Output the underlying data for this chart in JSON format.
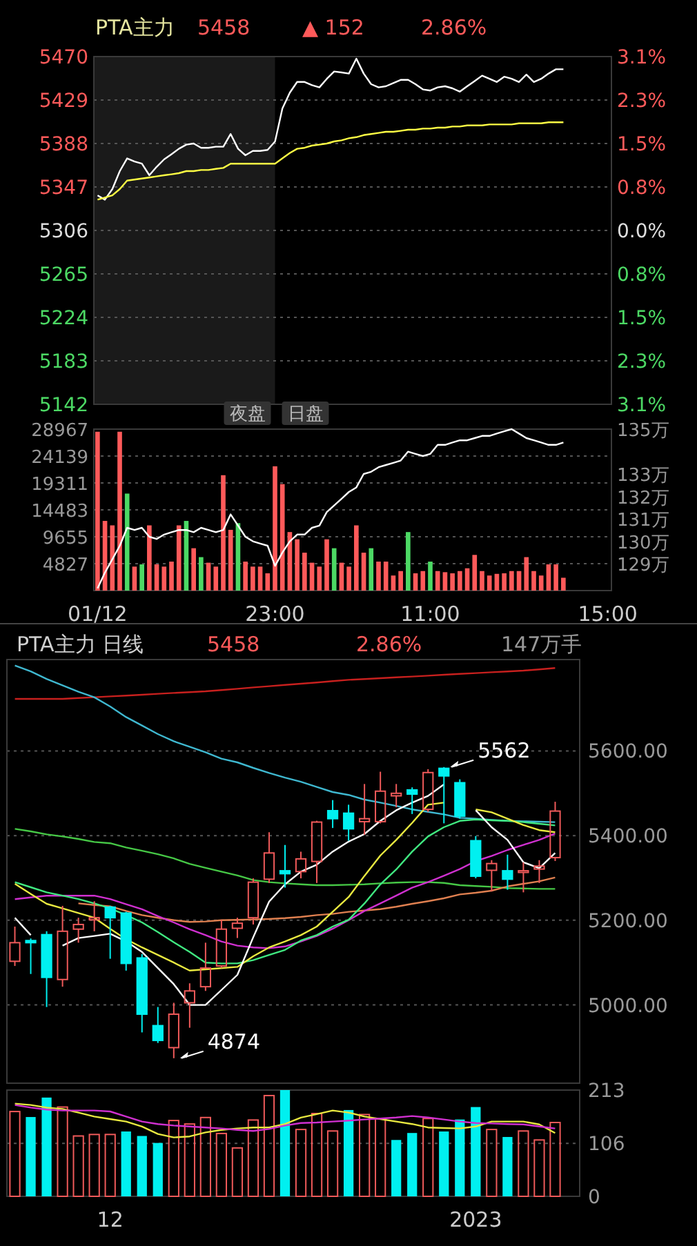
{
  "chart_data": [
    {
      "type": "line",
      "title": "PTA主力",
      "annotations": [
        "5458",
        "▲ 152",
        "2.86%",
        "夜盘",
        "日盘"
      ],
      "tick_labels": "y",
      "grid": "y",
      "categories": [
        null,
        null,
        null,
        null,
        null,
        null,
        null,
        null,
        null,
        null,
        null,
        null,
        null,
        null,
        null,
        null,
        null,
        null,
        null,
        null,
        null,
        null,
        null,
        null,
        null,
        null,
        null,
        null,
        null,
        null,
        null,
        null,
        null,
        null,
        null,
        null,
        null,
        null,
        null,
        null,
        null,
        null,
        null,
        null,
        null,
        null,
        null,
        null,
        null,
        null,
        null,
        null,
        null,
        null,
        null,
        null,
        null,
        null,
        null,
        null,
        null,
        null,
        null,
        null,
        null,
        null,
        null,
        null,
        null,
        null
      ],
      "ylim": [
        5142,
        5470
      ],
      "yticks": [
        5142,
        5183,
        5224,
        5265,
        5306,
        5347,
        5388,
        5429,
        5470
      ],
      "y2lim": [
        -3.09,
        3.09
      ],
      "y2ticks": [
        {
          "value": 3.09,
          "label": "3.1%"
        },
        {
          "value": 2.32,
          "label": "2.3%"
        },
        {
          "value": 1.55,
          "label": "1.5%"
        },
        {
          "value": 0.77,
          "label": "0.8%"
        },
        {
          "value": 0,
          "label": "0.0%"
        },
        {
          "value": -0.77,
          "label": "0.8%"
        },
        {
          "value": -1.55,
          "label": "1.5%"
        },
        {
          "value": -2.32,
          "label": "2.3%"
        },
        {
          "value": -3.09,
          "label": "3.1%"
        }
      ],
      "series": [
        {
          "type": "line",
          "color": "#ffffff",
          "values": [
            5339,
            5335,
            5345,
            5362,
            5374,
            5371,
            5369,
            5358,
            5366,
            5373,
            5378,
            5383,
            5387,
            5388,
            5384,
            5384,
            5385,
            5385,
            5397,
            5383,
            5377,
            5381,
            5381,
            5382,
            5390,
            5421,
            5436,
            5446,
            5446,
            5443,
            5441,
            5449,
            5456,
            5455,
            5454,
            5468,
            5454,
            5444,
            5441,
            5442,
            5445,
            5448,
            5448,
            5444,
            5439,
            5438,
            5441,
            5442,
            5440,
            5437,
            5442,
            5447,
            5452,
            5449,
            5446,
            5451,
            5449,
            5446,
            5453,
            5446,
            5449,
            5454,
            5458,
            5458,
            null,
            null,
            null,
            null,
            null,
            null
          ]
        },
        {
          "type": "line",
          "color": "#ffff44",
          "values": [
            5335,
            5337,
            5339,
            5345,
            5353,
            5354,
            5355,
            5356,
            5357,
            5358,
            5359,
            5360,
            5362,
            5362,
            5363,
            5363,
            5364,
            5365,
            5369,
            5369,
            5369,
            5369,
            5369,
            5369,
            5369,
            5374,
            5379,
            5383,
            5384,
            5386,
            5387,
            5388,
            5390,
            5391,
            5393,
            5394,
            5396,
            5397,
            5398,
            5399,
            5399,
            5400,
            5401,
            5401,
            5402,
            5402,
            5403,
            5403,
            5404,
            5404,
            5405,
            5405,
            5405,
            5406,
            5406,
            5406,
            5406,
            5407,
            5407,
            5407,
            5407,
            5408,
            5408,
            5408,
            null,
            null,
            null,
            null,
            null,
            null
          ]
        }
      ]
    },
    {
      "type": "bar",
      "grid": "y",
      "categories": [
        "01/12",
        null,
        null,
        null,
        null,
        null,
        null,
        null,
        null,
        null,
        null,
        null,
        null,
        null,
        null,
        null,
        null,
        null,
        null,
        null,
        null,
        null,
        null,
        null,
        "23:00",
        null,
        null,
        null,
        null,
        null,
        null,
        null,
        null,
        null,
        null,
        null,
        null,
        null,
        null,
        null,
        null,
        null,
        null,
        null,
        null,
        "11:00",
        null,
        null,
        null,
        null,
        null,
        null,
        null,
        null,
        null,
        null,
        null,
        null,
        null,
        null,
        null,
        null,
        null,
        null,
        null,
        null,
        null,
        null,
        null,
        "15:00"
      ],
      "ylim": [
        0,
        28967
      ],
      "yticks": [
        4827,
        9655,
        14483,
        19311,
        24139,
        28967
      ],
      "y2lim": [
        127.8,
        135
      ],
      "y2ticks": [
        {
          "value": 129,
          "label": "129万"
        },
        {
          "value": 130,
          "label": "130万"
        },
        {
          "value": 131,
          "label": "131万"
        },
        {
          "value": 132,
          "label": "132万"
        },
        {
          "value": 133,
          "label": "133万"
        },
        {
          "value": 135,
          "label": "135万"
        }
      ],
      "series": [
        {
          "type": "bar",
          "values": [
            28500,
            12500,
            11700,
            28500,
            17400,
            4300,
            4700,
            11700,
            4700,
            4300,
            5200,
            11700,
            12500,
            7600,
            6000,
            5000,
            4300,
            20700,
            10900,
            12100,
            5200,
            4300,
            4300,
            3100,
            22300,
            19100,
            10500,
            9200,
            6800,
            5000,
            4300,
            9200,
            7600,
            5000,
            4300,
            11700,
            6800,
            7600,
            5200,
            5200,
            2700,
            3500,
            10500,
            3100,
            3500,
            5200,
            3500,
            3300,
            3100,
            3500,
            4000,
            6400,
            3500,
            2700,
            3000,
            3100,
            3500,
            3500,
            6000,
            3500,
            2700,
            4700,
            4700,
            2300,
            null,
            null,
            null,
            null,
            null,
            null
          ],
          "colors": [
            "#ff5a5a",
            "#ff5a5a",
            "#ff5a5a",
            "#ff5a5a",
            "#4cd964",
            "#ff5a5a",
            "#4cd964",
            "#ff5a5a",
            "#ff5a5a",
            "#ff5a5a",
            "#ff5a5a",
            "#ff5a5a",
            "#4cd964",
            "#ff5a5a",
            "#4cd964",
            "#ff5a5a",
            "#ff5a5a",
            "#ff5a5a",
            "#ff5a5a",
            "#4cd964",
            "#ff5a5a",
            "#ff5a5a",
            "#ff5a5a",
            "#ff5a5a",
            "#ff5a5a",
            "#ff5a5a",
            "#ff5a5a",
            "#ff5a5a",
            "#ff5a5a",
            "#ff5a5a",
            "#ff5a5a",
            "#ff5a5a",
            "#4cd964",
            "#ff5a5a",
            "#ff5a5a",
            "#ff5a5a",
            "#ff5a5a",
            "#4cd964",
            "#ff5a5a",
            "#ff5a5a",
            "#ff5a5a",
            "#ff5a5a",
            "#4cd964",
            "#ff5a5a",
            "#ff5a5a",
            "#4cd964",
            "#ff5a5a",
            "#ff5a5a",
            "#ff5a5a",
            "#ff5a5a",
            "#ff5a5a",
            "#ff5a5a",
            "#ff5a5a",
            "#ff5a5a",
            "#ff5a5a",
            "#ff5a5a",
            "#ff5a5a",
            "#ff5a5a",
            "#ff5a5a",
            "#ff5a5a",
            "#ff5a5a",
            "#ff5a5a",
            "#ff5a5a",
            "#ff5a5a",
            "#ff5a5a",
            "#ff5a5a",
            "#ff5a5a",
            "#ff5a5a",
            "#ff5a5a",
            "#ff5a5a"
          ]
        },
        {
          "type": "line",
          "axis": "y2",
          "color": "#ffffff",
          "values": [
            127.9,
            128.6,
            129.2,
            129.8,
            130.6,
            130.5,
            130.6,
            130.2,
            130.1,
            130.3,
            130.4,
            130.5,
            130.5,
            130.4,
            130.6,
            130.5,
            130.4,
            130.5,
            131.2,
            130.7,
            130.2,
            130.0,
            129.9,
            129.8,
            128.9,
            129.5,
            130.0,
            130.3,
            130.3,
            130.6,
            130.7,
            131.3,
            131.6,
            131.9,
            132.2,
            132.4,
            133.0,
            133.1,
            133.3,
            133.4,
            133.5,
            133.6,
            134.0,
            133.9,
            133.8,
            133.9,
            134.3,
            134.3,
            134.4,
            134.5,
            134.5,
            134.6,
            134.7,
            134.7,
            134.8,
            134.9,
            135.0,
            134.8,
            134.6,
            134.5,
            134.4,
            134.3,
            134.3,
            134.4,
            null,
            null,
            null,
            null,
            null,
            null
          ]
        }
      ]
    },
    {
      "type": "candlestick",
      "title": "PTA主力 日线",
      "annotations": [
        "5458",
        "2.86%",
        "147万手",
        "5562",
        "4874"
      ],
      "tick_labels": "y",
      "grid": "y",
      "categories": [
        null,
        null,
        null,
        null,
        null,
        null,
        null,
        null,
        null,
        null,
        null,
        null,
        null,
        null,
        null,
        null,
        null,
        null,
        null,
        null,
        null,
        null,
        null,
        null,
        null,
        null,
        null,
        null,
        null,
        null,
        null,
        null,
        null,
        null,
        null
      ],
      "ylim": [
        4815,
        5816
      ],
      "yticks": [
        {
          "value": 5000,
          "label": "5000.00"
        },
        {
          "value": 5200,
          "label": "5200.00"
        },
        {
          "value": 5400,
          "label": "5400.00"
        },
        {
          "value": 5600,
          "label": "5600.00"
        }
      ],
      "ohlc": [
        [
          5103,
          5185,
          5092,
          5147
        ],
        [
          5152,
          5157,
          5073,
          5147
        ],
        [
          5166,
          5174,
          4995,
          5065
        ],
        [
          5060,
          5234,
          5043,
          5174
        ],
        [
          5179,
          5206,
          5147,
          5190
        ],
        [
          5201,
          5245,
          5174,
          5206
        ],
        [
          5231,
          5234,
          5109,
          5206
        ],
        [
          5217,
          5220,
          5081,
          5098
        ],
        [
          5111,
          5120,
          4935,
          4978
        ],
        [
          4951,
          4995,
          4910,
          4916
        ],
        [
          4899,
          5005,
          4874,
          4978
        ],
        [
          5005,
          5051,
          4946,
          5033
        ],
        [
          5043,
          5147,
          5033,
          5087
        ],
        [
          5092,
          5201,
          5087,
          5179
        ],
        [
          5181,
          5206,
          5158,
          5193
        ],
        [
          5206,
          5299,
          5190,
          5290
        ],
        [
          5297,
          5408,
          5288,
          5359
        ],
        [
          5317,
          5378,
          5277,
          5310
        ],
        [
          5315,
          5362,
          5299,
          5345
        ],
        [
          5339,
          5435,
          5288,
          5432
        ],
        [
          5459,
          5484,
          5418,
          5440
        ],
        [
          5453,
          5473,
          5388,
          5416
        ],
        [
          5433,
          5522,
          5402,
          5440
        ],
        [
          5433,
          5551,
          5429,
          5505
        ],
        [
          5494,
          5522,
          5467,
          5500
        ],
        [
          5508,
          5514,
          5451,
          5498
        ],
        [
          5462,
          5557,
          5456,
          5549
        ],
        [
          5559,
          5562,
          5429,
          5541
        ],
        [
          5525,
          5533,
          5440,
          5446
        ],
        [
          5388,
          5399,
          5299,
          5304
        ],
        [
          5318,
          5342,
          5268,
          5334
        ],
        [
          5317,
          5355,
          5272,
          5297
        ],
        [
          5313,
          5337,
          5266,
          5317
        ],
        [
          5321,
          5342,
          5288,
          5328
        ],
        [
          5348,
          5480,
          5340,
          5458
        ]
      ],
      "colors": [
        "#f05a5a",
        "#00f0f0",
        "#00f0f0",
        "#f05a5a",
        "#f05a5a",
        "#f05a5a",
        "#00f0f0",
        "#00f0f0",
        "#00f0f0",
        "#00f0f0",
        "#f05a5a",
        "#f05a5a",
        "#f05a5a",
        "#f05a5a",
        "#f05a5a",
        "#f05a5a",
        "#f05a5a",
        "#00f0f0",
        "#f05a5a",
        "#f05a5a",
        "#00f0f0",
        "#00f0f0",
        "#f05a5a",
        "#f05a5a",
        "#f05a5a",
        "#00f0f0",
        "#f05a5a",
        "#00f0f0",
        "#00f0f0",
        "#00f0f0",
        "#f05a5a",
        "#00f0f0",
        "#f05a5a",
        "#f05a5a",
        "#f05a5a"
      ],
      "series": [
        {
          "type": "line",
          "color": "#c8201e",
          "values": [
            5723,
            5723,
            5723,
            5723,
            5725,
            5727,
            5729,
            5731,
            5733,
            5735,
            5737,
            5739,
            5741,
            5744,
            5747,
            5750,
            5753,
            5756,
            5759,
            5762,
            5765,
            5768,
            5770,
            5772,
            5774,
            5776,
            5778,
            5780,
            5782,
            5784,
            5786,
            5788,
            5790,
            5793,
            5796
          ]
        },
        {
          "type": "line",
          "color": "#3fb8d0",
          "values": [
            5802,
            5788,
            5770,
            5755,
            5740,
            5727,
            5705,
            5680,
            5660,
            5640,
            5623,
            5610,
            5597,
            5582,
            5573,
            5560,
            5548,
            5537,
            5527,
            5515,
            5503,
            5496,
            5485,
            5478,
            5470,
            5462,
            5456,
            5450,
            5442,
            5440,
            5437,
            5435,
            5434,
            5433,
            5432
          ]
        },
        {
          "type": "line",
          "color": "#46c846",
          "values": [
            5416,
            5410,
            5403,
            5398,
            5392,
            5385,
            5382,
            5372,
            5364,
            5356,
            5346,
            5333,
            5324,
            5315,
            5306,
            5295,
            5290,
            5287,
            5285,
            5283,
            5283,
            5284,
            5285,
            5287,
            5289,
            5290,
            5290,
            5288,
            5283,
            5281,
            5279,
            5276,
            5275,
            5274,
            5274
          ]
        },
        {
          "type": "line",
          "color": "#e08050",
          "values": [
            null,
            null,
            null,
            null,
            5240,
            5236,
            5233,
            5222,
            5212,
            5206,
            5200,
            5196,
            5197,
            5200,
            5201,
            5202,
            5203,
            5205,
            5208,
            5212,
            5215,
            5220,
            5223,
            5226,
            5232,
            5239,
            5245,
            5252,
            5261,
            5265,
            5270,
            5280,
            5286,
            5292,
            5301
          ]
        },
        {
          "type": "line",
          "color": "#d030d0",
          "values": [
            5250,
            5254,
            5258,
            5258,
            5258,
            5258,
            5250,
            5238,
            5226,
            5210,
            5195,
            5179,
            5165,
            5150,
            5140,
            5136,
            5134,
            5138,
            5150,
            5163,
            5180,
            5200,
            5222,
            5240,
            5258,
            5277,
            5290,
            5305,
            5321,
            5340,
            5352,
            5366,
            5378,
            5390,
            5405
          ]
        },
        {
          "type": "line",
          "color": "#40e880",
          "values": [
            5290,
            5278,
            5266,
            5258,
            5250,
            5240,
            5228,
            5212,
            5195,
            5172,
            5148,
            5125,
            5100,
            5098,
            5098,
            5106,
            5118,
            5130,
            5152,
            5165,
            5185,
            5201,
            5240,
            5285,
            5320,
            5362,
            5398,
            5420,
            5435,
            5438,
            5436,
            5435,
            5432,
            5428,
            5424
          ]
        },
        {
          "type": "line",
          "color": "#e8e840",
          "values": [
            5286,
            5262,
            5239,
            5228,
            5217,
            5206,
            5180,
            5155,
            5136,
            5118,
            5100,
            5081,
            5084,
            5087,
            5090,
            5115,
            5136,
            5150,
            5165,
            5185,
            5220,
            5255,
            5305,
            5353,
            5390,
            5430,
            5473,
            5478,
            null,
            5462,
            5455,
            5440,
            5425,
            5413,
            5408
          ]
        },
        {
          "type": "line",
          "color": "#ffffff",
          "values": [
            5206,
            5165,
            null,
            5140,
            5158,
            5163,
            5168,
            5150,
            5125,
            5087,
            5049,
            5000,
            5000,
            5035,
            5071,
            5160,
            5244,
            5285,
            5315,
            5331,
            5362,
            5386,
            5404,
            5435,
            5460,
            5478,
            5494,
            5521,
            null,
            5460,
            5420,
            5390,
            5337,
            5323,
            5359
          ]
        }
      ]
    },
    {
      "type": "bar",
      "grid": "y",
      "categories": [
        null,
        null,
        null,
        null,
        null,
        null,
        "12",
        null,
        null,
        null,
        null,
        null,
        null,
        null,
        null,
        null,
        null,
        null,
        null,
        null,
        null,
        null,
        null,
        null,
        null,
        null,
        null,
        null,
        null,
        "2023",
        null,
        null,
        null,
        null,
        null
      ],
      "ylim": [
        0,
        213
      ],
      "yticks": [
        0,
        106,
        213
      ],
      "series": [
        {
          "type": "bar",
          "values": [
            170,
            159,
            198,
            179,
            121,
            124,
            124,
            130,
            121,
            107,
            152,
            145,
            158,
            126,
            97,
            153,
            202,
            213,
            134,
            166,
            131,
            173,
            164,
            155,
            113,
            127,
            156,
            130,
            154,
            179,
            134,
            119,
            131,
            113,
            148
          ],
          "colors": [
            "#f05a5a",
            "#00f0f0",
            "#00f0f0",
            "#f05a5a",
            "#f05a5a",
            "#f05a5a",
            "#f05a5a",
            "#00f0f0",
            "#00f0f0",
            "#00f0f0",
            "#f05a5a",
            "#f05a5a",
            "#f05a5a",
            "#f05a5a",
            "#f05a5a",
            "#f05a5a",
            "#f05a5a",
            "#00f0f0",
            "#f05a5a",
            "#f05a5a",
            "#f05a5a",
            "#00f0f0",
            "#f05a5a",
            "#f05a5a",
            "#00f0f0",
            "#00f0f0",
            "#f05a5a",
            "#00f0f0",
            "#00f0f0",
            "#00f0f0",
            "#f05a5a",
            "#00f0f0",
            "#f05a5a",
            "#f05a5a",
            "#f05a5a"
          ]
        },
        {
          "type": "line",
          "color": "#e8e840",
          "values": [
            186,
            183,
            178,
            175,
            168,
            160,
            155,
            150,
            140,
            125,
            118,
            120,
            128,
            133,
            136,
            138,
            138,
            145,
            158,
            165,
            172,
            168,
            160,
            155,
            150,
            145,
            138,
            137,
            136,
            140,
            150,
            150,
            150,
            144,
            127
          ]
        },
        {
          "type": "line",
          "color": "#d030d0",
          "values": [
            183,
            178,
            174,
            172,
            172,
            172,
            170,
            160,
            150,
            145,
            142,
            140,
            138,
            136,
            133,
            131,
            135,
            142,
            147,
            148,
            150,
            152,
            154,
            156,
            158,
            161,
            158,
            154,
            150,
            147,
            146,
            145,
            144,
            140,
            136
          ]
        }
      ]
    }
  ]
}
